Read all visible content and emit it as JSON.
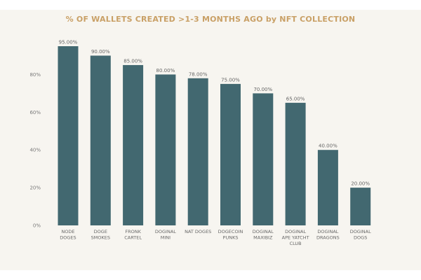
{
  "chart_data": {
    "type": "bar",
    "title": "% OF WALLETS CREATED >1-3 MONTHS AGO by NFT COLLECTION",
    "categories": [
      [
        "NODE",
        "DOGES"
      ],
      [
        "DOGE",
        "SMOKES"
      ],
      [
        "FRONK",
        "CARTEL"
      ],
      [
        "DOGINAL",
        "MINI"
      ],
      [
        "NAT DOGES"
      ],
      [
        "DOGECOIN",
        "PUNKS"
      ],
      [
        "DOGINAL",
        "MAXIBIZ"
      ],
      [
        "DOGINAL",
        "APE YATCHT",
        "CLUB"
      ],
      [
        "DOGINAL",
        "DRAGONS"
      ],
      [
        "DOGINAL",
        "DOGS"
      ]
    ],
    "values": [
      95,
      90,
      85,
      80,
      78,
      75,
      70,
      65,
      40,
      20
    ],
    "data_labels": [
      "95.00%",
      "90.00%",
      "85.00%",
      "80.00%",
      "78.00%",
      "75.00%",
      "70.00%",
      "65.00%",
      "40.00%",
      "20.00%"
    ],
    "y_ticks": [
      0,
      20,
      40,
      60,
      80
    ],
    "y_tick_labels": [
      "0%",
      "20%",
      "40%",
      "60%",
      "80%"
    ],
    "ylim": [
      0,
      95
    ],
    "grid": false,
    "bar_color": "#426870",
    "title_color": "#c9a066"
  }
}
